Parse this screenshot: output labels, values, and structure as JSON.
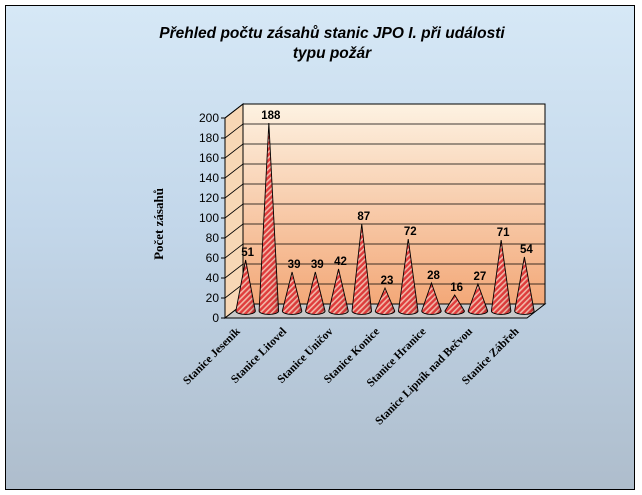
{
  "chart_data": {
    "type": "bar",
    "title_lines": [
      "Přehled počtu zásahů stanic JPO I. při události",
      "typu požár"
    ],
    "xlabel": "",
    "ylabel": "Počet zásahů",
    "ylim": [
      0,
      200
    ],
    "yticks": [
      0,
      20,
      40,
      60,
      80,
      100,
      120,
      140,
      160,
      180,
      200
    ],
    "grid": true,
    "legend": "none",
    "categories": [
      "Stanice Jeseník",
      "",
      "Stanice Litovel",
      "",
      "Stanice Uničov",
      "",
      "Stanice Konice",
      "",
      "Stanice Hranice",
      "",
      "Stanice Lipník nad Bečvou",
      "",
      "Stanice Zábřeh"
    ],
    "values": [
      51,
      188,
      39,
      39,
      42,
      87,
      23,
      72,
      28,
      16,
      27,
      71,
      54
    ],
    "colors": {
      "bar": "#e03c3c",
      "bar_stripe": "#f2b8a8",
      "wall_top": "#fdf2e2",
      "wall_bottom": "#f3a878"
    }
  }
}
